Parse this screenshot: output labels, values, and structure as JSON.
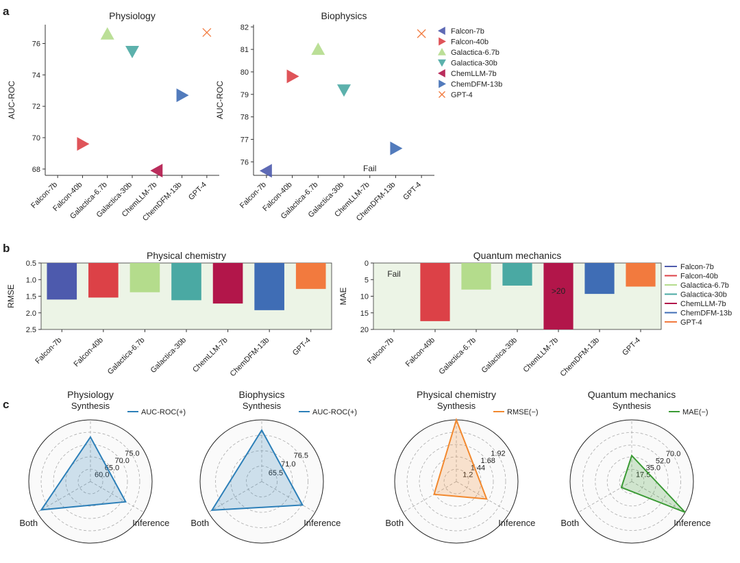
{
  "panel_letters": {
    "a": "a",
    "b": "b",
    "c": "c"
  },
  "colors": {
    "Falcon-7b": "#4d5aad",
    "Falcon-40b": "#dc4147",
    "Galactica-6.7b": "#b4dc8c",
    "Galactica-30b": "#4aa9a3",
    "ChemLLM-7b": "#b2164a",
    "ChemDFM-13b": "#3f6db5",
    "GPT-4": "#f27a3e",
    "panel_bg": "#ecf4e6",
    "radar_blue": "#2c7fb8",
    "radar_orange": "#f2882e",
    "radar_green": "#3a9a34"
  },
  "chart_data": [
    {
      "id": "physiology",
      "type": "scatter",
      "title": "Physiology",
      "ylabel": "AUC-ROC",
      "categories": [
        "Falcon-7b",
        "Falcon-40b",
        "Galactica-6.7b",
        "Galactica-30b",
        "ChemLLM-7b",
        "ChemDFM-13b",
        "GPT-4"
      ],
      "yticks": [
        68,
        70,
        72,
        74,
        76
      ],
      "ylim": [
        67.6,
        77.2
      ],
      "points": [
        {
          "model": "Falcon-40b",
          "value": 69.6,
          "marker": "tri-right"
        },
        {
          "model": "Galactica-6.7b",
          "value": 76.6,
          "marker": "tri-up"
        },
        {
          "model": "Galactica-30b",
          "value": 75.5,
          "marker": "tri-down"
        },
        {
          "model": "ChemLLM-7b",
          "value": 67.9,
          "marker": "tri-left"
        },
        {
          "model": "ChemDFM-13b",
          "value": 72.7,
          "marker": "tri-right"
        },
        {
          "model": "GPT-4",
          "value": 76.7,
          "marker": "x"
        }
      ]
    },
    {
      "id": "biophysics",
      "type": "scatter",
      "title": "Biophysics",
      "ylabel": "AUC-ROC",
      "categories": [
        "Falcon-7b",
        "Falcon-40b",
        "Galactica-6.7b",
        "Galactica-30b",
        "ChemLLM-7b",
        "ChemDFM-13b",
        "GPT-4"
      ],
      "yticks": [
        76,
        77,
        78,
        79,
        80,
        81,
        82
      ],
      "ylim": [
        75.4,
        82.1
      ],
      "annotation": {
        "model": "ChemLLM-7b",
        "text": "Fail",
        "value": 75.7
      },
      "points": [
        {
          "model": "Falcon-7b",
          "value": 75.6,
          "marker": "tri-left"
        },
        {
          "model": "Falcon-40b",
          "value": 79.8,
          "marker": "tri-right"
        },
        {
          "model": "Galactica-6.7b",
          "value": 81.0,
          "marker": "tri-up"
        },
        {
          "model": "Galactica-30b",
          "value": 79.2,
          "marker": "tri-down"
        },
        {
          "model": "ChemDFM-13b",
          "value": 76.6,
          "marker": "tri-right"
        },
        {
          "model": "GPT-4",
          "value": 81.7,
          "marker": "x"
        }
      ]
    },
    {
      "id": "physical_chemistry",
      "type": "bar",
      "title": "Physical chemistry",
      "ylabel": "RMSE",
      "categories": [
        "Falcon-7b",
        "Falcon-40b",
        "Galactica-6.7b",
        "Galactica-30b",
        "ChemLLM-7b",
        "ChemDFM-13b",
        "GPT-4"
      ],
      "values": [
        1.6,
        1.54,
        1.38,
        1.62,
        1.72,
        1.92,
        1.28
      ],
      "yticks": [
        "0.5",
        "1.0",
        "1.5",
        "2.0",
        "2.5"
      ],
      "ylim": [
        0.5,
        2.5
      ],
      "inverted": true
    },
    {
      "id": "quantum_mechanics",
      "type": "bar",
      "title": "Quantum mechanics",
      "ylabel": "MAE",
      "categories": [
        "Falcon-7b",
        "Falcon-40b",
        "Galactica-6.7b",
        "Galactica-30b",
        "ChemLLM-7b",
        "ChemDFM-13b",
        "GPT-4"
      ],
      "values": [
        null,
        17.5,
        8.0,
        6.8,
        20,
        9.3,
        7.1
      ],
      "yticks": [
        "0",
        "5",
        "10",
        "15",
        "20"
      ],
      "ylim": [
        0,
        20
      ],
      "inverted": true,
      "annotations": [
        {
          "model": "Falcon-7b",
          "text": "Fail"
        },
        {
          "model": "ChemLLM-7b",
          "text": ">20"
        }
      ]
    },
    {
      "id": "radar_physiology",
      "type": "radar",
      "title": "Physiology",
      "axes": [
        "Synthesis",
        "Inference",
        "Both"
      ],
      "values": [
        73.0,
        71.5,
        78.0
      ],
      "rmin": 55,
      "rmax": 80,
      "rings": [
        "60.0",
        "65.0",
        "70.0",
        "75.0"
      ],
      "ring_values": [
        60,
        65,
        70,
        75
      ],
      "legend": "AUC-ROC(+)",
      "color_key": "radar_blue"
    },
    {
      "id": "radar_biophysics",
      "type": "radar",
      "title": "Biophysics",
      "axes": [
        "Synthesis",
        "Inference",
        "Both"
      ],
      "values": [
        78.3,
        76.8,
        80.5
      ],
      "rmin": 60,
      "rmax": 82,
      "rings": [
        "65.5",
        "71.0",
        "76.5"
      ],
      "ring_values": [
        65.5,
        71.0,
        76.5
      ],
      "legend": "AUC-ROC(+)",
      "color_key": "radar_blue"
    },
    {
      "id": "radar_physical_chemistry",
      "type": "radar",
      "title": "Physical chemistry",
      "axes": [
        "Synthesis",
        "Inference",
        "Both"
      ],
      "values": [
        2.16,
        1.64,
        1.46
      ],
      "rmin": 0.96,
      "rmax": 2.16,
      "rings": [
        "1.2",
        "1.44",
        "1.68",
        "1.92"
      ],
      "ring_values": [
        1.2,
        1.44,
        1.68,
        1.92
      ],
      "legend": "RMSE(−)",
      "color_key": "radar_orange"
    },
    {
      "id": "radar_quantum_mechanics",
      "type": "radar",
      "title": "Quantum mechanics",
      "axes": [
        "Synthesis",
        "Inference",
        "Both"
      ],
      "values": [
        37,
        88,
        17
      ],
      "rmin": 0,
      "rmax": 88,
      "rings": [
        "17.5",
        "35.0",
        "52.0",
        "70.0"
      ],
      "ring_values": [
        17.5,
        35,
        52,
        70
      ],
      "legend": "MAE(−)",
      "color_key": "radar_green"
    }
  ],
  "legends": {
    "a": [
      "Falcon-7b",
      "Falcon-40b",
      "Galactica-6.7b",
      "Galactica-30b",
      "ChemLLM-7b",
      "ChemDFM-13b",
      "GPT-4"
    ],
    "b": [
      "Falcon-7b",
      "Falcon-40b",
      "Galactica-6.7b",
      "Galactica-30b",
      "ChemLLM-7b",
      "ChemDFM-13b",
      "GPT-4"
    ]
  },
  "legend_markers": {
    "Falcon-7b": "tri-left",
    "Falcon-40b": "tri-right",
    "Galactica-6.7b": "tri-up",
    "Galactica-30b": "tri-down",
    "ChemLLM-7b": "tri-left",
    "ChemDFM-13b": "tri-right",
    "GPT-4": "x"
  }
}
